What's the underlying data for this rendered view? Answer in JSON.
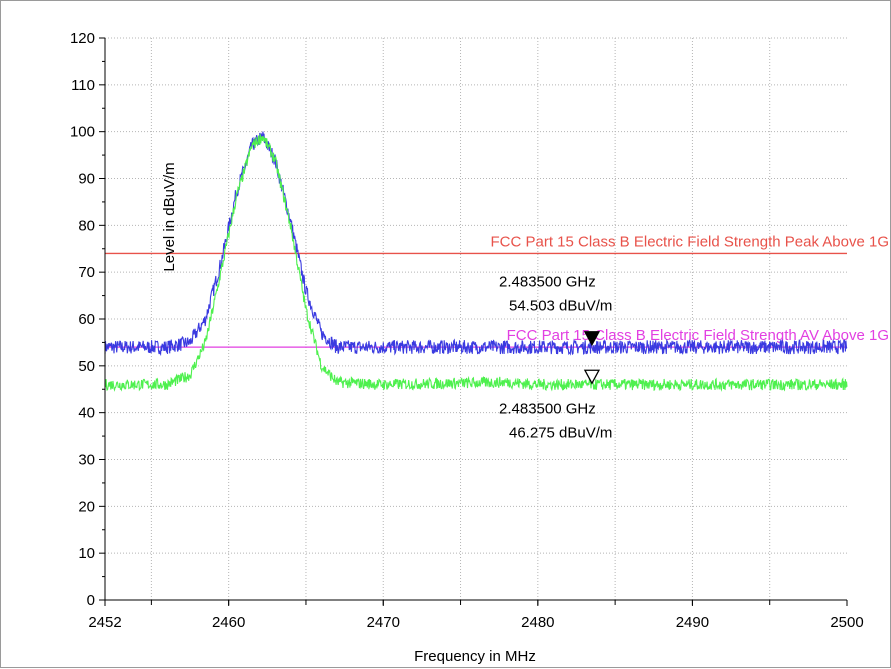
{
  "chart_data": {
    "type": "line",
    "xlabel": "Frequency in MHz",
    "ylabel": "Level in dBuV/m",
    "xlim": [
      2452,
      2500
    ],
    "ylim": [
      0,
      120
    ],
    "x_ticks": [
      "2452",
      "2460",
      "2470",
      "2480",
      "2490",
      "2500"
    ],
    "x_tick_values": [
      2452,
      2460,
      2470,
      2480,
      2490,
      2500
    ],
    "y_ticks": [
      "0",
      "10",
      "20",
      "30",
      "40",
      "50",
      "60",
      "70",
      "80",
      "90",
      "100",
      "110",
      "120"
    ],
    "y_tick_values": [
      0,
      10,
      20,
      30,
      40,
      50,
      60,
      70,
      80,
      90,
      100,
      110,
      120
    ],
    "grid": true,
    "limits": [
      {
        "label": "FCC Part 15 Class B Electric Field Strength Peak Above 1G",
        "value": 74,
        "color": "#e8524a"
      },
      {
        "label": "FCC Part 15 Class B Electric Field Strength AV Above 1G",
        "value": 54,
        "color": "#e23fe2"
      }
    ],
    "series": [
      {
        "color": "#3a3ae0",
        "x": [
          2452,
          2456,
          2457.5,
          2458.5,
          2459.5,
          2460.5,
          2461.5,
          2462.2,
          2463,
          2464,
          2465,
          2466,
          2467,
          2470,
          2480,
          2490,
          2500
        ],
        "y": [
          54,
          54,
          55,
          60,
          72,
          87,
          97,
          99,
          94,
          81,
          66,
          57,
          54,
          54,
          54,
          54,
          54
        ],
        "noise": 1.5
      },
      {
        "color": "#4ef04e",
        "x": [
          2452,
          2456,
          2457.5,
          2458.5,
          2459.5,
          2460.5,
          2461.5,
          2462.2,
          2463,
          2464,
          2465,
          2466,
          2467,
          2470,
          2478,
          2480,
          2490,
          2500
        ],
        "y": [
          46,
          46,
          48,
          55,
          70,
          86,
          97,
          99,
          94,
          80,
          62,
          50,
          46.5,
          46,
          46.5,
          46,
          46,
          46
        ],
        "noise": 1.2
      }
    ],
    "markers": [
      {
        "x": 2483.5,
        "y": 54.503,
        "style": "filled",
        "label_freq": "2.483500 GHz",
        "label_level": "54.503 dBuV/m"
      },
      {
        "x": 2483.5,
        "y": 46.275,
        "style": "hollow",
        "label_freq": "2.483500 GHz",
        "label_level": "46.275 dBuV/m"
      }
    ]
  }
}
